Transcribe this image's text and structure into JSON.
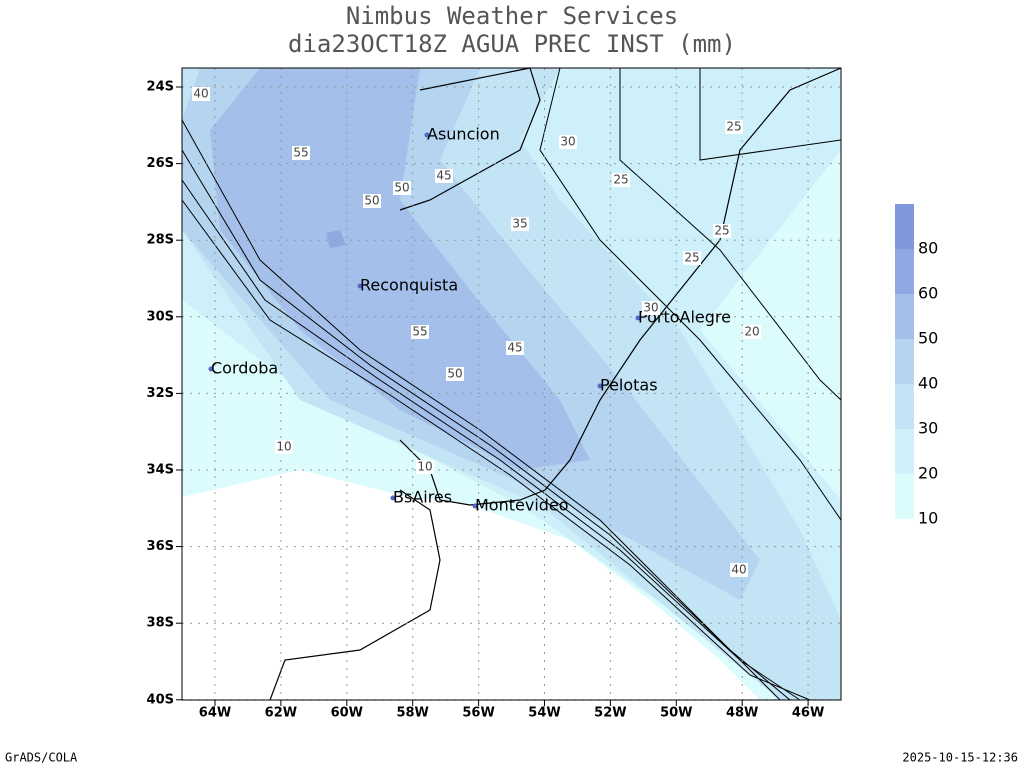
{
  "header": {
    "title": "Nimbus Weather Services",
    "subtitle": "dia23OCT18Z AGUA PREC INST (mm)"
  },
  "map": {
    "lat_ticks": [
      "24S",
      "26S",
      "28S",
      "30S",
      "32S",
      "34S",
      "36S",
      "38S",
      "40S"
    ],
    "lon_ticks": [
      "64W",
      "62W",
      "60W",
      "58W",
      "56W",
      "54W",
      "52W",
      "50W",
      "48W",
      "46W"
    ],
    "cities": [
      "Asuncion",
      "Reconquista",
      "Cordoba",
      "PortoAlegre",
      "Pelotas",
      "BsAires",
      "Montevideo"
    ],
    "contour_labels": [
      40,
      55,
      50,
      50,
      45,
      30,
      25,
      25,
      25,
      25,
      35,
      30,
      20,
      55,
      45,
      50,
      10,
      10,
      40
    ]
  },
  "colorbar": {
    "labels": [
      80,
      60,
      50,
      40,
      30,
      20,
      10
    ],
    "colors": [
      "#7f97dc",
      "#90a8e2",
      "#a4c0ea",
      "#b4d4f0",
      "#c3e4f5",
      "#cdf0fa",
      "#dcfbfd"
    ]
  },
  "footer": {
    "left": "GrADS/COLA",
    "right": "2025-10-15-12:36"
  }
}
